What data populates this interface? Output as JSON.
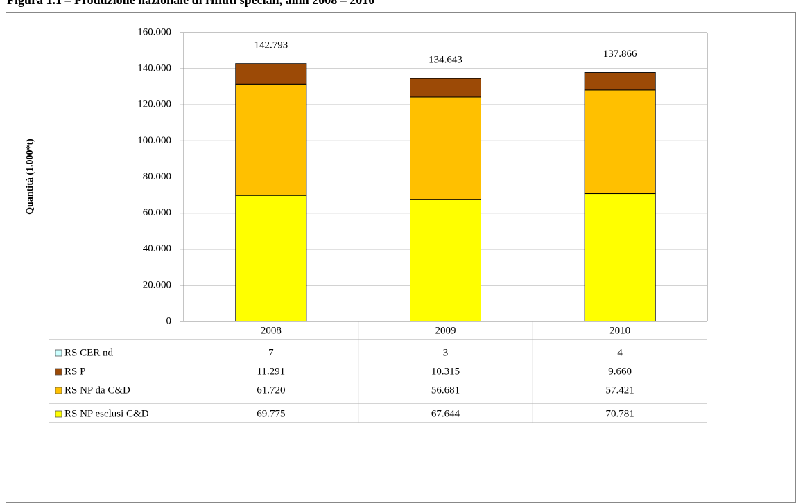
{
  "chart_data": {
    "type": "stacked_bar",
    "title": "Figura 1.1 – Produzione nazionale di rifiuti speciali, anni 2008 – 2010",
    "y_label": "Quantità (1.000*t)",
    "categories": [
      "2008",
      "2009",
      "2010"
    ],
    "series": [
      {
        "name": "RS NP esclusi C&D",
        "color": "#ffff00",
        "values": [
          69775,
          67644,
          70781
        ],
        "value_labels": [
          "69.775",
          "67.644",
          "70.781"
        ]
      },
      {
        "name": "RS NP da C&D",
        "color": "#ffc000",
        "values": [
          61720,
          56681,
          57421
        ],
        "value_labels": [
          "61.720",
          "56.681",
          "57.421"
        ]
      },
      {
        "name": "RS P",
        "color": "#9c4a06",
        "values": [
          11291,
          10315,
          9660
        ],
        "value_labels": [
          "11.291",
          "10.315",
          "9.660"
        ]
      },
      {
        "name": "RS CER nd",
        "color": "#ccffff",
        "values": [
          7,
          3,
          4
        ]
      }
    ],
    "totals": {
      "values": [
        142793,
        134643,
        137866
      ],
      "value_labels": [
        "142.793",
        "134.643",
        "137.866"
      ]
    },
    "ylim": [
      0,
      160000
    ],
    "yticks": [
      0,
      {
        "value": 20000,
        "label": "20.000"
      },
      {
        "value": 40000,
        "label": "40.000"
      },
      {
        "value": 60000,
        "label": "60.000"
      },
      {
        "value": 80000,
        "label": "80.000"
      },
      {
        "value": 100000,
        "label": "100.000"
      },
      {
        "value": 120000,
        "label": "120.000"
      },
      {
        "value": 140000,
        "label": "140.000"
      },
      {
        "value": 160000,
        "label": "160.000"
      }
    ],
    "grid": true
  }
}
